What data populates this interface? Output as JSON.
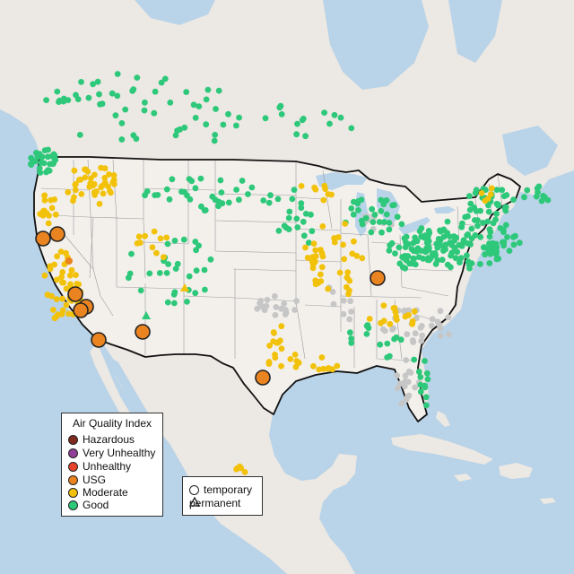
{
  "legend": {
    "title": "Air Quality Index",
    "categories": [
      {
        "label": "Hazardous",
        "color": "#7e2a1e"
      },
      {
        "label": "Very Unhealthy",
        "color": "#8f3f97"
      },
      {
        "label": "Unhealthy",
        "color": "#e8442c"
      },
      {
        "label": "USG",
        "color": "#ea8420"
      },
      {
        "label": "Moderate",
        "color": "#f2c20a"
      },
      {
        "label": "Good",
        "color": "#2ec87a"
      }
    ]
  },
  "type_legend": {
    "temporary": "temporary",
    "permanent": "permanent"
  },
  "colors": {
    "water": "#b9d3e8",
    "land": "#ece8e3",
    "us_land": "#f3f0ec",
    "border": "#111111",
    "no_data": "#c6c6c6"
  }
}
